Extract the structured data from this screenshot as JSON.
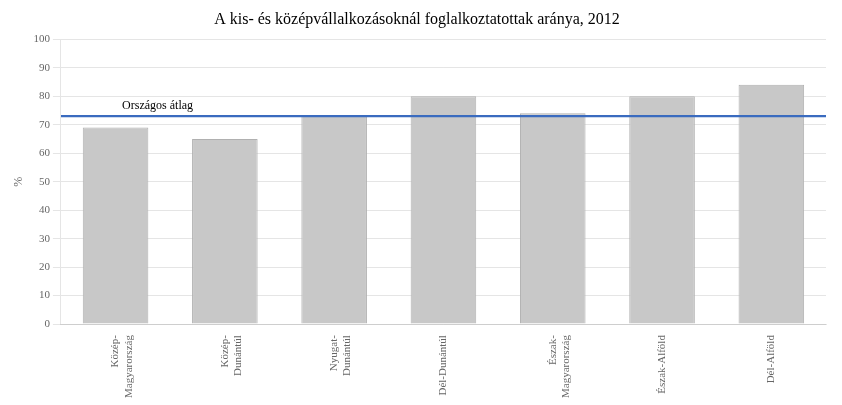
{
  "chart_data": {
    "type": "bar",
    "title": "A kis- és középvállalkozásoknál foglalkoztatottak aránya, 2012",
    "categories": [
      "Közép-\nMagyarország",
      "Közép-\nDunántúl",
      "Nyugat-\nDunántúl",
      "Dél-Dunántúl",
      "Észak-\nMagyarország",
      "Észak-Alföld",
      "Dél-Alföld"
    ],
    "values": [
      69,
      65,
      73,
      80,
      74,
      80,
      84
    ],
    "color": "#c8c8c8",
    "ylabel": "%",
    "ylim": [
      0,
      100
    ],
    "yticks": [
      0,
      10,
      20,
      30,
      40,
      50,
      60,
      70,
      80,
      90,
      100
    ],
    "grid": true,
    "annotations": [
      {
        "y": 73,
        "label": "Országos átlag",
        "color": "#3a6bbf"
      }
    ]
  }
}
